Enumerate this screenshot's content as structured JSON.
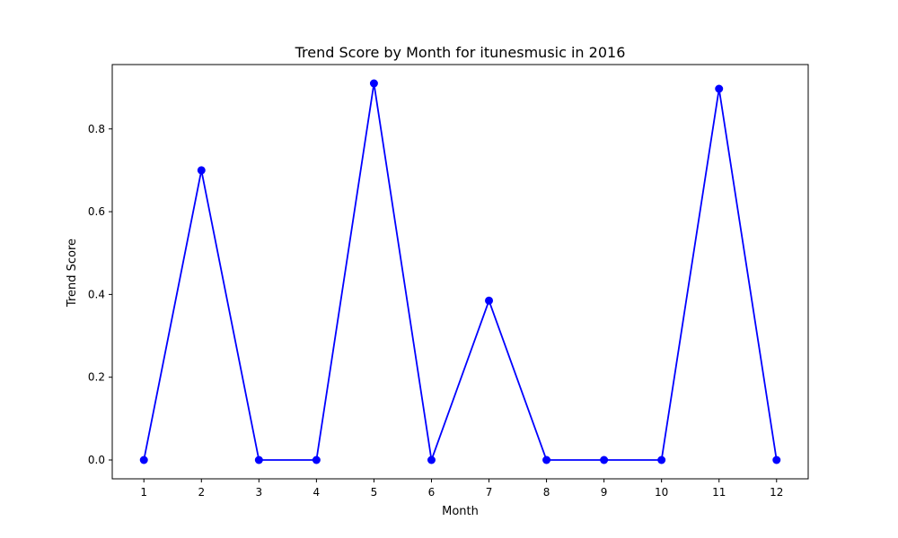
{
  "chart_data": {
    "type": "line",
    "title": "Trend Score by Month for itunesmusic in 2016",
    "xlabel": "Month",
    "ylabel": "Trend Score",
    "x": [
      1,
      2,
      3,
      4,
      5,
      6,
      7,
      8,
      9,
      10,
      11,
      12
    ],
    "series": [
      {
        "values": [
          0.0,
          0.7,
          0.0,
          0.0,
          0.91,
          0.0,
          0.385,
          0.0,
          0.0,
          0.0,
          0.897,
          0.0
        ],
        "color": "#0000ff",
        "marker": "circle"
      }
    ],
    "xticks": [
      "1",
      "2",
      "3",
      "4",
      "5",
      "6",
      "7",
      "8",
      "9",
      "10",
      "11",
      "12"
    ],
    "yticks": [
      0.0,
      0.2,
      0.4,
      0.6,
      0.8
    ],
    "ytick_labels": [
      "0.0",
      "0.2",
      "0.4",
      "0.6",
      "0.8"
    ],
    "xlim": [
      0.45,
      12.55
    ],
    "ylim": [
      -0.0455,
      0.9555
    ],
    "grid": false,
    "legend": false
  }
}
